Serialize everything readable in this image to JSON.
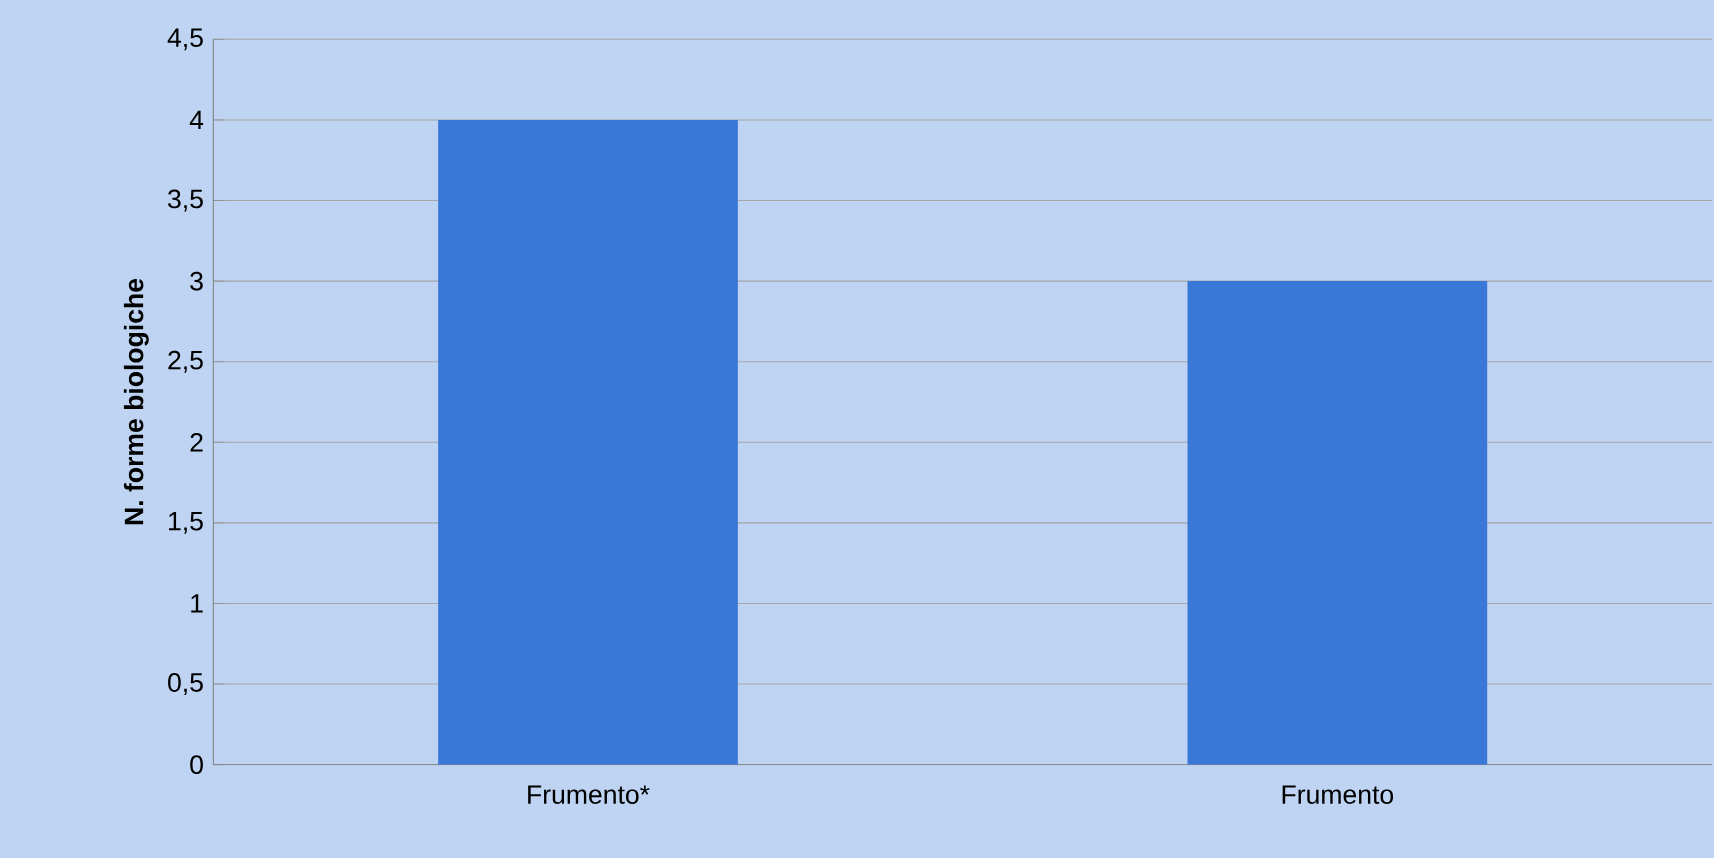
{
  "chart_data": {
    "type": "bar",
    "ylabel": "N. forme biologiche",
    "categories": [
      "Frumento*",
      "Frumento"
    ],
    "values": [
      4,
      3
    ],
    "color": "#3a78d8",
    "ylim": [
      0,
      4.5
    ],
    "yticks": [
      0,
      {
        "value": 0.5,
        "label": "0,5"
      },
      1,
      {
        "value": 1.5,
        "label": "1,5"
      },
      2,
      {
        "value": 2.5,
        "label": "2,5"
      },
      3,
      {
        "value": 3.5,
        "label": "3,5"
      },
      4,
      {
        "value": 4.5,
        "label": "4,5"
      }
    ],
    "grid": "y"
  }
}
